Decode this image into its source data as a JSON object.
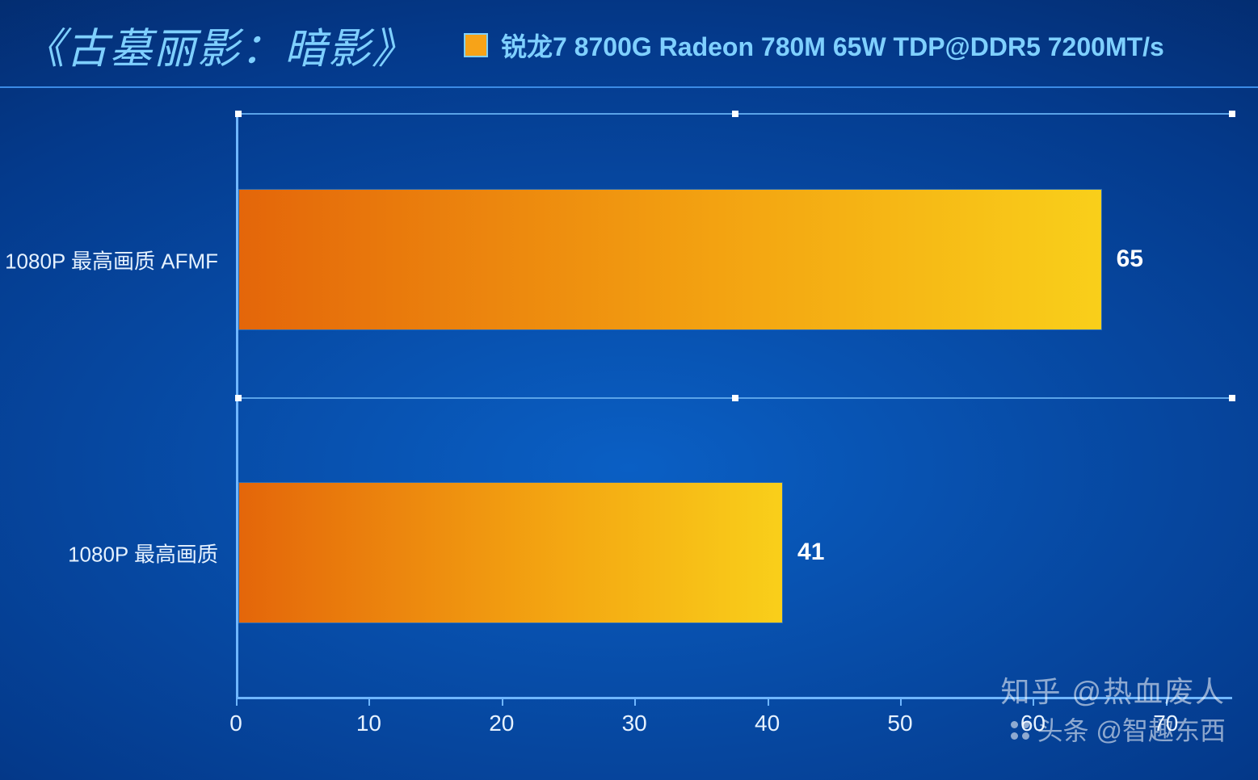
{
  "title": "《古墓丽影：暗影》",
  "legend": {
    "label": "锐龙7 8700G Radeon 780M 65W TDP@DDR5 7200MT/s",
    "swatch_fill": "#f7a318",
    "swatch_border": "#7fd0ff"
  },
  "chart": {
    "type": "bar-horizontal",
    "background_gradient": [
      "#0a5fc4",
      "#043a8c",
      "#021a4a"
    ],
    "axis_color": "#6fb6ff",
    "grid_color": "#5aa3e8",
    "tick_square_color": "#ffffff",
    "label_color": "#e6f2ff",
    "value_color": "#ffffff",
    "label_fontsize": 26,
    "value_fontsize": 30,
    "xlabel_fontsize": 28,
    "x_min": 0,
    "x_max": 75,
    "x_ticks": [
      0,
      10,
      20,
      30,
      40,
      50,
      60,
      70
    ],
    "bar_gradient": [
      "#e4660a",
      "#f3a211",
      "#f9cf1a"
    ],
    "bar_border": "#2a6db8",
    "bar_height_pct": 24,
    "categories": [
      {
        "label": "1080P 最高画质 AFMF",
        "value": 65
      },
      {
        "label": "1080P 最高画质",
        "value": 41
      }
    ],
    "hgrid_positions_pct": [
      0,
      48.5
    ]
  },
  "watermarks": {
    "line1": "知乎 @热血废人",
    "line2": "头条 @智趣东西"
  }
}
